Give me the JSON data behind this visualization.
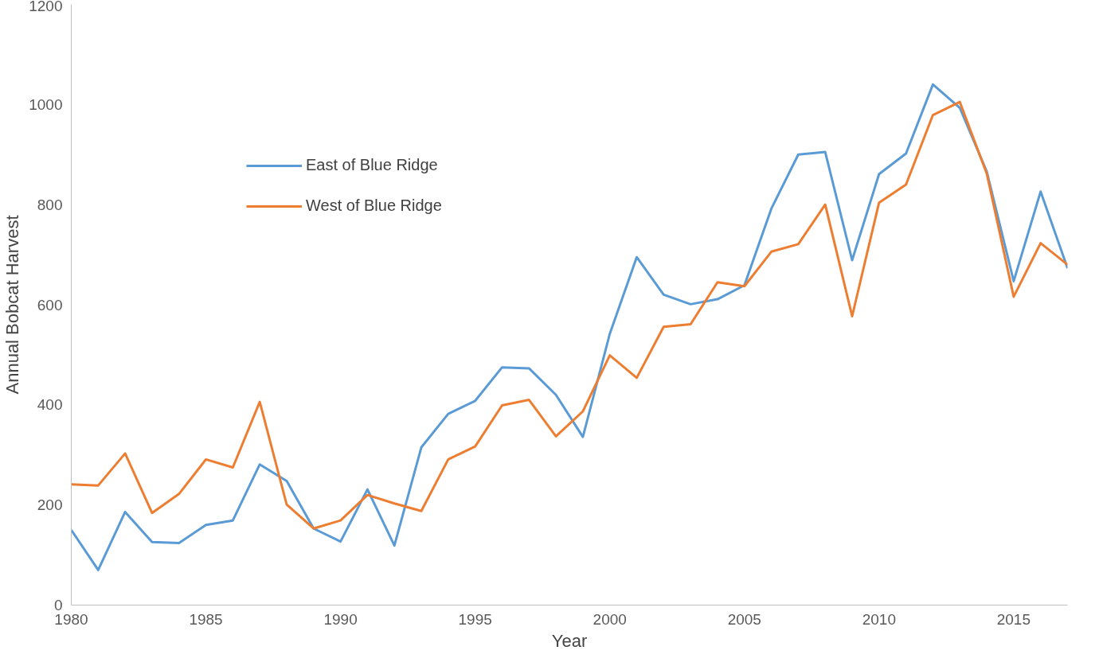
{
  "chart_data": {
    "type": "line",
    "xlabel": "Year",
    "ylabel": "Annual Bobcat Harvest",
    "x": [
      1980,
      1981,
      1982,
      1983,
      1984,
      1985,
      1986,
      1987,
      1988,
      1989,
      1990,
      1991,
      1992,
      1993,
      1994,
      1995,
      1996,
      1997,
      1998,
      1999,
      2000,
      2001,
      2002,
      2003,
      2004,
      2005,
      2006,
      2007,
      2008,
      2009,
      2010,
      2011,
      2012,
      2013,
      2014,
      2015,
      2016,
      2017
    ],
    "series": [
      {
        "name": "East of Blue Ridge",
        "color": "#5b9bd5",
        "values": [
          150,
          70,
          186,
          126,
          124,
          160,
          169,
          281,
          248,
          153,
          127,
          231,
          119,
          315,
          382,
          408,
          475,
          473,
          420,
          336,
          542,
          695,
          620,
          601,
          611,
          639,
          792,
          900,
          905,
          689,
          861,
          902,
          1040,
          993,
          866,
          647,
          826,
          673
        ]
      },
      {
        "name": "West of Blue Ridge",
        "color": "#ed7d31",
        "values": [
          241,
          239,
          303,
          184,
          222,
          291,
          275,
          406,
          201,
          153,
          169,
          220,
          203,
          188,
          291,
          317,
          399,
          410,
          337,
          387,
          499,
          454,
          556,
          561,
          645,
          637,
          706,
          721,
          800,
          577,
          804,
          840,
          979,
          1005,
          862,
          616,
          723,
          680
        ]
      }
    ],
    "xlim": [
      1980,
      2017
    ],
    "xticks": [
      1980,
      1985,
      1990,
      1995,
      2000,
      2005,
      2010,
      2015
    ],
    "ylim": [
      0,
      1200
    ],
    "yticks": [
      0,
      200,
      400,
      600,
      800,
      1000,
      1200
    ],
    "grid": false,
    "legend": "top left",
    "marker": "none",
    "line_style": "solid"
  }
}
